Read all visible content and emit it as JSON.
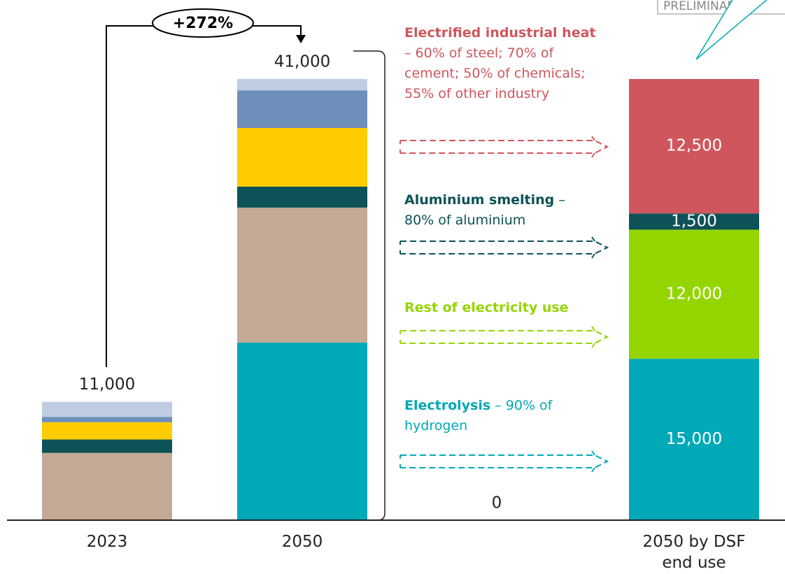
{
  "chart_data": {
    "type": "stacked-bar",
    "categories": [
      "2023",
      "2050",
      "2050 by DSF end use"
    ],
    "ylim": [
      0,
      41000
    ],
    "series": [
      {
        "color": "#00a9b7",
        "values": [
          null,
          16500,
          15000
        ],
        "value_labels": [
          null,
          null,
          "15,000"
        ]
      },
      {
        "color": "#c4a994",
        "values": [
          6250,
          12550,
          null
        ]
      },
      {
        "color": "#94d500",
        "values": [
          null,
          null,
          12000
        ],
        "value_labels": [
          null,
          null,
          "12,000"
        ]
      },
      {
        "color": "#0d5257",
        "values": [
          1250,
          1950,
          1500
        ],
        "value_labels": [
          null,
          null,
          "1,500"
        ]
      },
      {
        "color": "#ffcc00",
        "values": [
          1600,
          5450,
          null
        ]
      },
      {
        "color": "#6f8fbb",
        "values": [
          500,
          3500,
          null
        ]
      },
      {
        "color": "#bfcde3",
        "values": [
          1400,
          1050,
          null
        ]
      },
      {
        "color": "#cf565d",
        "values": [
          null,
          null,
          12500
        ],
        "value_labels": [
          null,
          null,
          "12,500"
        ]
      }
    ],
    "totals": [
      11000,
      41000,
      null
    ],
    "total_labels": [
      "11,000",
      "41,000",
      null
    ],
    "growth_label": "+272%",
    "zero_label": "0",
    "stamp": "PRELIMINARY",
    "notes": [
      {
        "bold": "Electrified industrial heat",
        "text": "– 60% of steel; 70% of cement; 50% of chemicals; 55% of other industry",
        "color": "#cf565d"
      },
      {
        "bold": "Aluminium smelting",
        "text": "– 80% of aluminium",
        "color": "#0d5257"
      },
      {
        "bold": "Rest of electricity use",
        "text": "",
        "color": "#94d500"
      },
      {
        "bold": "Electrolysis",
        "text": "– 90% of hydrogen",
        "color": "#00a9b7"
      }
    ]
  }
}
